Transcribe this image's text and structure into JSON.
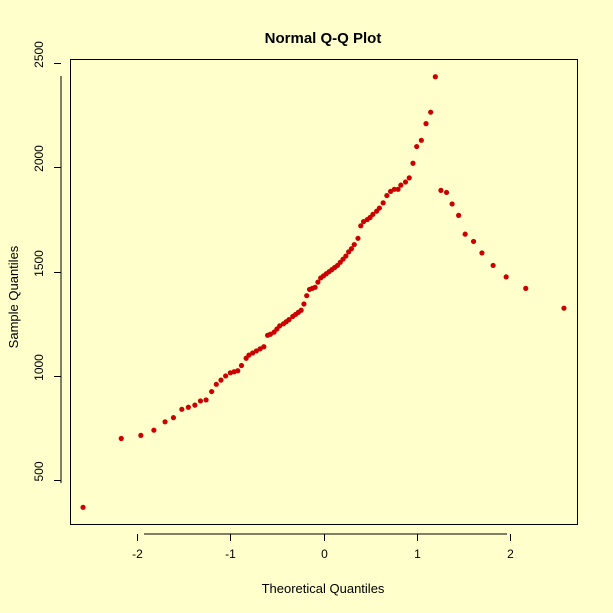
{
  "chart_data": {
    "type": "scatter",
    "title": "Normal Q-Q Plot",
    "xlabel": "Theoretical Quantiles",
    "ylabel": "Sample Quantiles",
    "xlim": [
      -2.72,
      2.72
    ],
    "ylim": [
      290,
      2520
    ],
    "x_ticks": [
      -2,
      -1,
      0,
      1,
      2
    ],
    "y_ticks": [
      500,
      1000,
      1500,
      2000,
      2500
    ],
    "x_tick_labels": [
      "-2",
      "-1",
      "0",
      "1",
      "2"
    ],
    "y_tick_labels": [
      "500",
      "1000",
      "1500",
      "2000",
      "2500"
    ],
    "grid": false,
    "legend": null,
    "point_color": "#CC0000",
    "background_color": "#FFFFCC",
    "points": {
      "x": [
        -2.58,
        -2.17,
        -1.96,
        -1.82,
        -1.7,
        -1.61,
        -1.52,
        -1.45,
        -1.38,
        -1.32,
        -1.26,
        -1.2,
        -1.15,
        -1.1,
        -1.05,
        -1.0,
        -0.96,
        -0.92,
        -0.88,
        -0.83,
        -0.8,
        -0.76,
        -0.72,
        -0.68,
        -0.64,
        -0.6,
        -0.57,
        -0.53,
        -0.5,
        -0.47,
        -0.43,
        -0.4,
        -0.37,
        -0.33,
        -0.3,
        -0.27,
        -0.24,
        -0.21,
        -0.18,
        -0.15,
        -0.12,
        -0.09,
        -0.06,
        -0.03,
        0.0,
        0.03,
        0.06,
        0.09,
        0.12,
        0.15,
        0.18,
        0.21,
        0.24,
        0.27,
        0.3,
        0.33,
        0.37,
        0.4,
        0.43,
        0.47,
        0.5,
        0.53,
        0.57,
        0.6,
        0.64,
        0.68,
        0.72,
        0.76,
        0.8,
        0.83,
        0.88,
        0.92,
        0.96,
        1.0,
        1.05,
        1.1,
        1.15,
        1.2,
        1.26,
        1.32,
        1.38,
        1.45,
        1.52,
        1.61,
        1.7,
        1.82,
        1.96,
        2.17,
        2.58
      ],
      "y": [
        370,
        700,
        715,
        740,
        780,
        800,
        840,
        850,
        860,
        880,
        885,
        925,
        960,
        980,
        1000,
        1015,
        1020,
        1025,
        1050,
        1085,
        1100,
        1110,
        1120,
        1130,
        1140,
        1195,
        1200,
        1210,
        1225,
        1240,
        1250,
        1260,
        1270,
        1285,
        1295,
        1305,
        1315,
        1345,
        1385,
        1415,
        1420,
        1425,
        1450,
        1470,
        1480,
        1490,
        1500,
        1510,
        1520,
        1530,
        1545,
        1560,
        1575,
        1595,
        1610,
        1630,
        1660,
        1720,
        1740,
        1750,
        1760,
        1775,
        1790,
        1805,
        1830,
        1865,
        1885,
        1895,
        1895,
        1915,
        1930,
        1950,
        2020,
        2100,
        2130,
        2210,
        2265,
        2435,
        1890,
        1880,
        1825,
        1770,
        1680,
        1645,
        1590,
        1530,
        1475,
        1420,
        1325
      ]
    }
  }
}
